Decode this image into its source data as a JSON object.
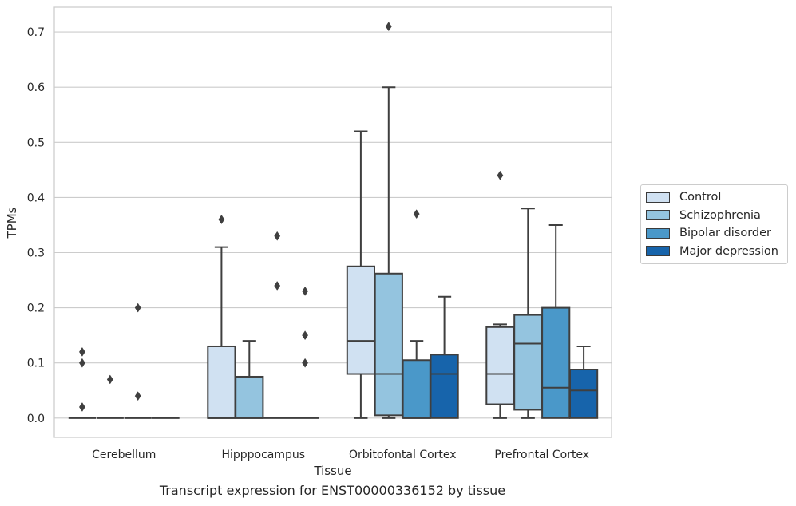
{
  "chart_data": {
    "type": "box",
    "title": "",
    "caption": "Transcript expression for ENST00000336152 by tissue",
    "xlabel": "Tissue",
    "ylabel": "TPMs",
    "ylim": [
      -0.035,
      0.745
    ],
    "yticks": [
      "0.0",
      "0.1",
      "0.2",
      "0.3",
      "0.4",
      "0.5",
      "0.6",
      "0.7"
    ],
    "grid": true,
    "legend_position": "right",
    "categories": [
      "Cerebellum",
      "Hipppocampus",
      "Orbitofontal Cortex",
      "Prefrontal Cortex"
    ],
    "series": [
      {
        "name": "Control",
        "color": "#d0e1f2",
        "boxes": [
          {
            "whislo": 0,
            "q1": 0,
            "med": 0,
            "q3": 0,
            "whishi": 0,
            "fliers": [
              0.02,
              0.1,
              0.12
            ]
          },
          {
            "whislo": 0,
            "q1": 0,
            "med": 0,
            "q3": 0.13,
            "whishi": 0.31,
            "fliers": [
              0.36
            ]
          },
          {
            "whislo": 0,
            "q1": 0.08,
            "med": 0.14,
            "q3": 0.275,
            "whishi": 0.52,
            "fliers": []
          },
          {
            "whislo": 0,
            "q1": 0.025,
            "med": 0.08,
            "q3": 0.165,
            "whishi": 0.17,
            "fliers": [
              0.44
            ]
          }
        ]
      },
      {
        "name": "Schizophrenia",
        "color": "#94c4df",
        "boxes": [
          {
            "whislo": 0,
            "q1": 0,
            "med": 0,
            "q3": 0,
            "whishi": 0,
            "fliers": [
              0.07
            ]
          },
          {
            "whislo": 0,
            "q1": 0,
            "med": 0,
            "q3": 0.075,
            "whishi": 0.14,
            "fliers": []
          },
          {
            "whislo": 0,
            "q1": 0.005,
            "med": 0.08,
            "q3": 0.262,
            "whishi": 0.6,
            "fliers": [
              0.71
            ]
          },
          {
            "whislo": 0,
            "q1": 0.015,
            "med": 0.135,
            "q3": 0.187,
            "whishi": 0.38,
            "fliers": []
          }
        ]
      },
      {
        "name": "Bipolar disorder",
        "color": "#4a98c9",
        "boxes": [
          {
            "whislo": 0,
            "q1": 0,
            "med": 0,
            "q3": 0,
            "whishi": 0,
            "fliers": [
              0.04,
              0.2
            ]
          },
          {
            "whislo": 0,
            "q1": 0,
            "med": 0,
            "q3": 0,
            "whishi": 0,
            "fliers": [
              0.24,
              0.33
            ]
          },
          {
            "whislo": 0,
            "q1": 0,
            "med": 0,
            "q3": 0.105,
            "whishi": 0.14,
            "fliers": [
              0.37
            ]
          },
          {
            "whislo": 0,
            "q1": 0,
            "med": 0.055,
            "q3": 0.2,
            "whishi": 0.35,
            "fliers": []
          }
        ]
      },
      {
        "name": "Major depression",
        "color": "#1764ab",
        "boxes": [
          {
            "whislo": 0,
            "q1": 0,
            "med": 0,
            "q3": 0,
            "whishi": 0,
            "fliers": []
          },
          {
            "whislo": 0,
            "q1": 0,
            "med": 0,
            "q3": 0,
            "whishi": 0,
            "fliers": [
              0.1,
              0.15,
              0.23
            ]
          },
          {
            "whislo": 0,
            "q1": 0,
            "med": 0.08,
            "q3": 0.115,
            "whishi": 0.22,
            "fliers": []
          },
          {
            "whislo": 0,
            "q1": 0,
            "med": 0.05,
            "q3": 0.088,
            "whishi": 0.13,
            "fliers": []
          }
        ]
      }
    ]
  }
}
